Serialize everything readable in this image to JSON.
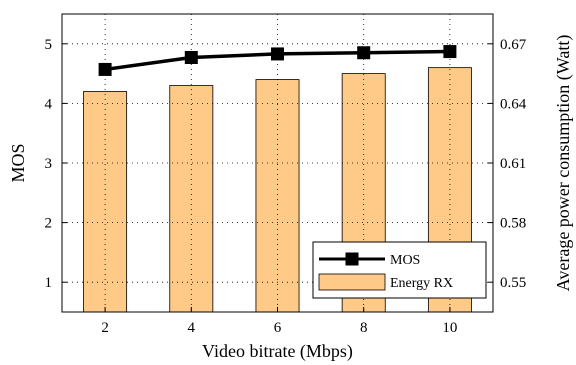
{
  "chart_data": {
    "type": "bar",
    "categories": [
      "2",
      "4",
      "6",
      "8",
      "10"
    ],
    "x_ticks": [
      "2",
      "4",
      "6",
      "8",
      "10"
    ],
    "xlabel": "Video bitrate (Mbps)",
    "ylabel_left": "MOS",
    "ylabel_right": "Average power consumption (Watt)",
    "ylim_left": [
      0.5,
      5.5
    ],
    "ylim_right": [
      0.535,
      0.685
    ],
    "y_ticks_left": [
      "1",
      "2",
      "3",
      "4",
      "5"
    ],
    "y_ticks_right": [
      "0.55",
      "0.58",
      "0.61",
      "0.64",
      "0.67"
    ],
    "grid": true,
    "legend_position": "bottom-right",
    "series": [
      {
        "name": "MOS",
        "type": "line",
        "axis": "left",
        "values": [
          4.57,
          4.77,
          4.83,
          4.85,
          4.87
        ],
        "color": "#000000"
      },
      {
        "name": "Energy RX",
        "type": "bar",
        "axis": "left",
        "values": [
          4.2,
          4.3,
          4.4,
          4.5,
          4.6
        ],
        "color": "#FFC987"
      }
    ]
  }
}
